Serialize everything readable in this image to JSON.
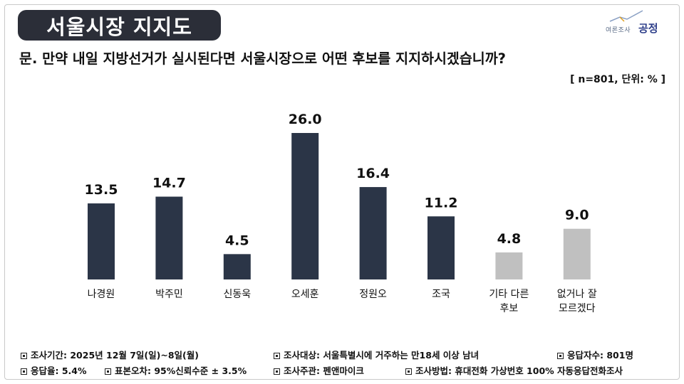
{
  "header": {
    "title": "서울시장 지지도",
    "logo_small": "여론조사",
    "logo_big": "공정"
  },
  "question": "문. 만약 내일 지방선거가 실시된다면 서울시장으로 어떤 후보를 지지하시겠습니까?",
  "sample_unit": "[ n=801, 단위: % ]",
  "colors": {
    "candidate_bar": "#2b3547",
    "other_bar": "#c0c0c0",
    "title_bg": "#2b2e38"
  },
  "chart_data": {
    "type": "bar",
    "categories": [
      "나경원",
      "박주민",
      "신동욱",
      "오세훈",
      "정원오",
      "조국",
      "기타 다른\n후보",
      "없거나 잘\n모르겠다"
    ],
    "values": [
      13.5,
      14.7,
      4.5,
      26.0,
      16.4,
      11.2,
      4.8,
      9.0
    ],
    "value_labels": [
      "13.5",
      "14.7",
      "4.5",
      "26.0",
      "16.4",
      "11.2",
      "4.8",
      "9.0"
    ],
    "bar_colors": [
      "candidate",
      "candidate",
      "candidate",
      "candidate",
      "candidate",
      "candidate",
      "other",
      "other"
    ],
    "title": "",
    "xlabel": "",
    "ylabel": "",
    "ylim": [
      0,
      26
    ],
    "grid": false,
    "legend": "none"
  },
  "footer": {
    "period": "조사기간: 2025년 12월 7일(일)~8일(월)",
    "target": "조사대상: 서울특별시에 거주하는 만18세 이상 남녀",
    "respondents": "응답자수: 801명",
    "response_rate": "응답율: 5.4%",
    "margin": "표본오차: 95%신뢰수준 ± 3.5%",
    "host": "조사주관: 펜앤마이크",
    "method": "조사방법: 휴대전화 가상번호 100% 자동응답전화조사"
  }
}
